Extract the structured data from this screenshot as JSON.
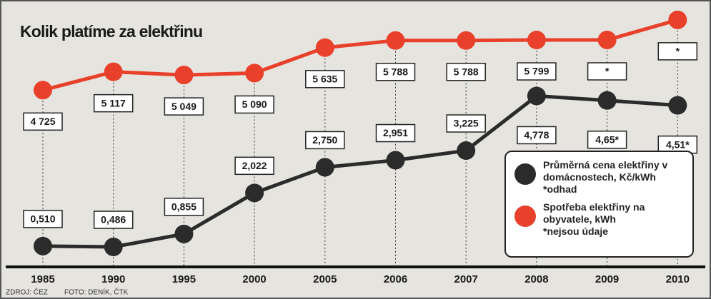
{
  "chart_data": {
    "type": "line",
    "title": "Kolik platíme za elektřinu",
    "source": "ZDROJ: ČEZ",
    "photo": "FOTO: DENÍK, ČTK",
    "categories": [
      "1985",
      "1990",
      "1995",
      "2000",
      "2005",
      "2006",
      "2007",
      "2008",
      "2009",
      "2010"
    ],
    "series": [
      {
        "name": "Průměrná cena elektřiny v domácnostech, Kč/kWh",
        "note": "*odhad",
        "color": "#2b2b2b",
        "values": [
          0.51,
          0.486,
          0.855,
          2.022,
          2.75,
          2.951,
          3.225,
          4.778,
          4.65,
          4.51
        ],
        "value_labels": [
          "0,510",
          "0,486",
          "0,855",
          "2,022",
          "2,750",
          "2,951",
          "3,225",
          "4,778",
          "4,65*",
          "4,51*"
        ]
      },
      {
        "name": "Spotřeba elektřiny na obyvatele, kWh",
        "note": "*nejsou údaje",
        "color": "#e8402a",
        "axis": "y2",
        "values": [
          4725,
          5117,
          5049,
          5090,
          5635,
          5788,
          5788,
          5799,
          5800,
          6230
        ],
        "value_labels": [
          "4 725",
          "5 117",
          "5 049",
          "5 090",
          "5 635",
          "5 788",
          "5 788",
          "5 799",
          "*",
          "*"
        ]
      }
    ],
    "ylim": [
      0,
      7.1
    ],
    "y2lim": [
      1000,
      6350
    ]
  }
}
